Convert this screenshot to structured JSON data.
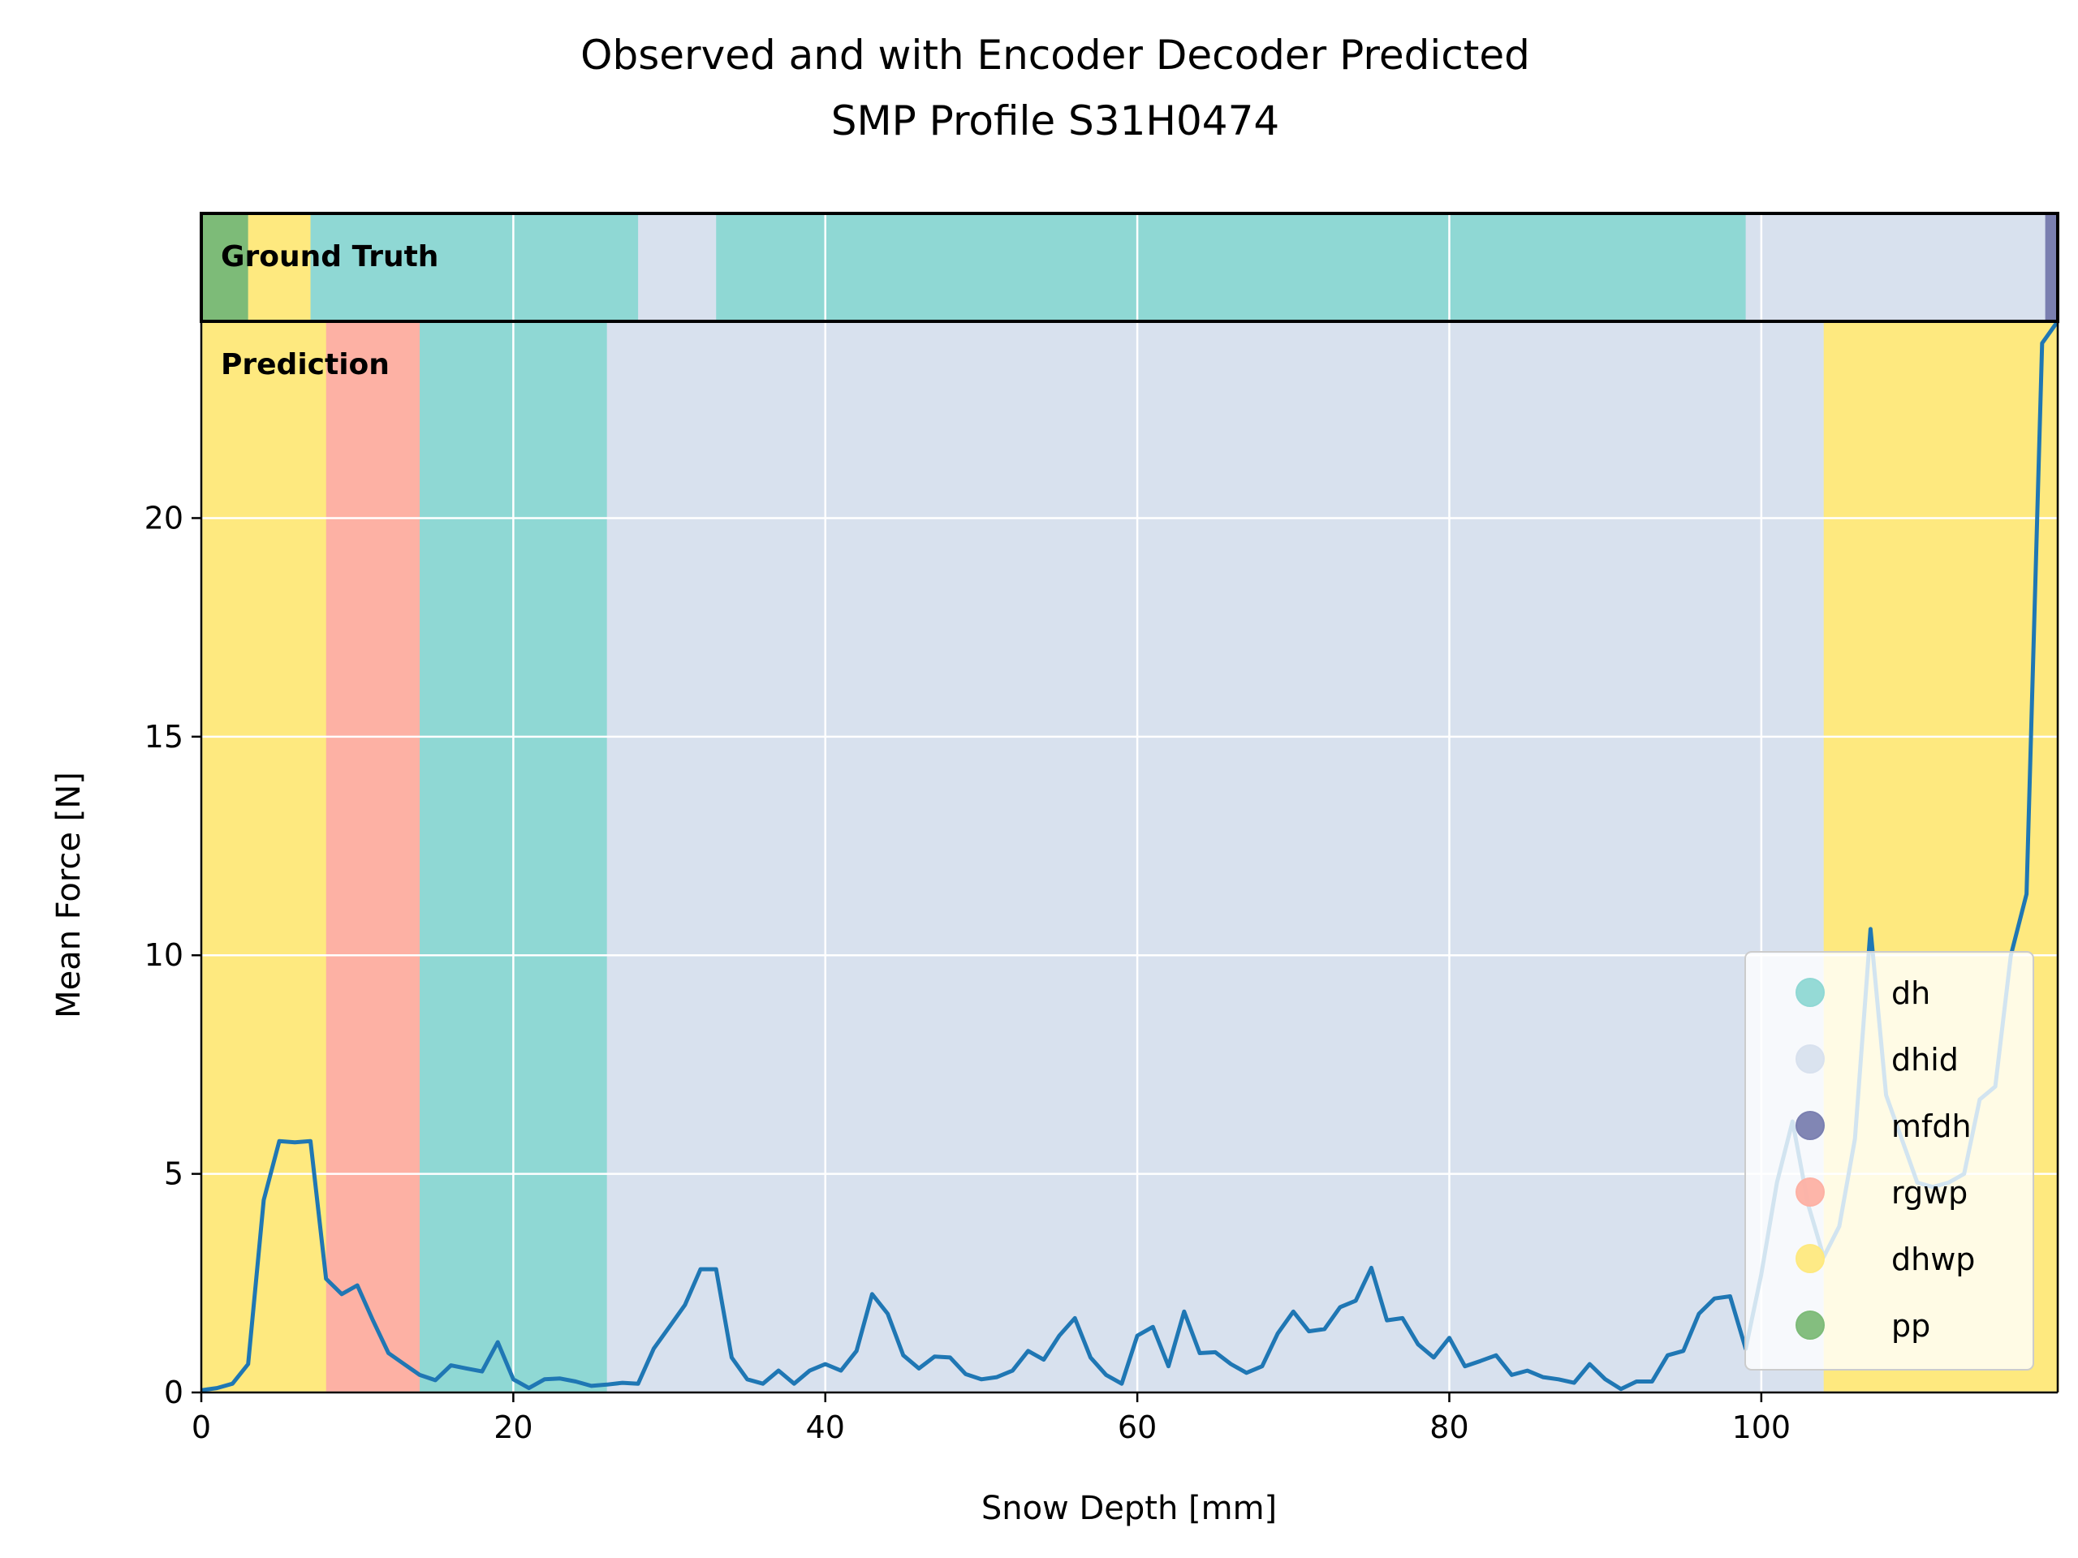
{
  "chart_data": {
    "type": "line",
    "title": "Observed and with Encoder Decoder Predicted",
    "subtitle": "SMP Profile S31H0474",
    "xlabel": "Snow Depth [mm]",
    "ylabel": "Mean Force [N]",
    "xlim": [
      0,
      119
    ],
    "ylim": [
      0,
      24.5
    ],
    "xticks": [
      0,
      20,
      40,
      60,
      80,
      100
    ],
    "yticks": [
      0,
      5,
      10,
      15,
      20
    ],
    "grid": true,
    "legend_position": "lower-right",
    "colors": {
      "dh": "#8fd8d4",
      "dhid": "#d8e1ee",
      "mfdh": "#7a7fb0",
      "rgwp": "#fdb1a4",
      "dhwp": "#fee97f",
      "pp": "#7dbb78",
      "line": "#1f77b4"
    },
    "legend": [
      {
        "label": "dh",
        "color": "#8fd8d4"
      },
      {
        "label": "dhid",
        "color": "#d8e1ee"
      },
      {
        "label": "mfdh",
        "color": "#7a7fb0"
      },
      {
        "label": "rgwp",
        "color": "#fdb1a4"
      },
      {
        "label": "dhwp",
        "color": "#fee97f"
      },
      {
        "label": "pp",
        "color": "#7dbb78"
      }
    ],
    "ground_truth_label": "Ground Truth",
    "prediction_label": "Prediction",
    "ground_truth_segments": [
      {
        "start": 0,
        "end": 3,
        "class": "pp"
      },
      {
        "start": 3,
        "end": 7,
        "class": "dhwp"
      },
      {
        "start": 7,
        "end": 28,
        "class": "dh"
      },
      {
        "start": 28,
        "end": 33,
        "class": "dhid"
      },
      {
        "start": 33,
        "end": 99,
        "class": "dh"
      },
      {
        "start": 99,
        "end": 118.2,
        "class": "dhid"
      },
      {
        "start": 118.2,
        "end": 119,
        "class": "mfdh"
      }
    ],
    "prediction_segments": [
      {
        "start": 0,
        "end": 8,
        "class": "dhwp"
      },
      {
        "start": 8,
        "end": 14,
        "class": "rgwp"
      },
      {
        "start": 14,
        "end": 26,
        "class": "dh"
      },
      {
        "start": 26,
        "end": 104,
        "class": "dhid"
      },
      {
        "start": 104,
        "end": 119,
        "class": "dhwp"
      }
    ],
    "series": [
      {
        "x": [
          0,
          1,
          2,
          3,
          4,
          5,
          6,
          7,
          8,
          9,
          10,
          11,
          12,
          13,
          14,
          15,
          16,
          17,
          18,
          19,
          20,
          21,
          22,
          23,
          24,
          25,
          26,
          27,
          28,
          29,
          30,
          31,
          32,
          33,
          34,
          35,
          36,
          37,
          38,
          39,
          40,
          41,
          42,
          43,
          44,
          45,
          46,
          47,
          48,
          49,
          50,
          51,
          52,
          53,
          54,
          55,
          56,
          57,
          58,
          59,
          60,
          61,
          62,
          63,
          64,
          65,
          66,
          67,
          68,
          69,
          70,
          71,
          72,
          73,
          74,
          75,
          76,
          77,
          78,
          79,
          80,
          81,
          82,
          83,
          84,
          85,
          86,
          87,
          88,
          89,
          90,
          91,
          92,
          93,
          94,
          95,
          96,
          97,
          98,
          99,
          100,
          101,
          102,
          103,
          104,
          105,
          106,
          107,
          108,
          109,
          110,
          111,
          112,
          113,
          114,
          115,
          116,
          117,
          118,
          119
        ],
        "y": [
          0.05,
          0.1,
          0.2,
          0.65,
          4.4,
          5.75,
          5.72,
          5.75,
          2.6,
          2.25,
          2.45,
          1.65,
          0.9,
          0.65,
          0.4,
          0.28,
          0.62,
          0.55,
          0.48,
          1.15,
          0.3,
          0.1,
          0.3,
          0.32,
          0.25,
          0.15,
          0.18,
          0.22,
          0.2,
          1.0,
          1.5,
          2.0,
          2.82,
          2.82,
          0.8,
          0.3,
          0.2,
          0.5,
          0.2,
          0.5,
          0.65,
          0.5,
          0.95,
          2.25,
          1.8,
          0.85,
          0.55,
          0.82,
          0.8,
          0.42,
          0.3,
          0.35,
          0.5,
          0.95,
          0.75,
          1.3,
          1.7,
          0.8,
          0.4,
          0.2,
          1.3,
          1.5,
          0.6,
          1.85,
          0.9,
          0.92,
          0.65,
          0.45,
          0.6,
          1.35,
          1.85,
          1.4,
          1.45,
          1.95,
          2.1,
          2.85,
          1.65,
          1.7,
          1.1,
          0.8,
          1.25,
          0.6,
          0.72,
          0.85,
          0.4,
          0.5,
          0.35,
          0.3,
          0.22,
          0.65,
          0.3,
          0.08,
          0.25,
          0.25,
          0.85,
          0.95,
          1.8,
          2.15,
          2.2,
          1.0,
          2.7,
          4.8,
          6.2,
          4.3,
          3.1,
          3.8,
          5.8,
          10.6,
          6.8,
          5.8,
          4.8,
          4.7,
          4.8,
          5.0,
          6.7,
          7.0,
          10.0,
          11.4,
          24.0,
          24.5
        ]
      }
    ]
  }
}
